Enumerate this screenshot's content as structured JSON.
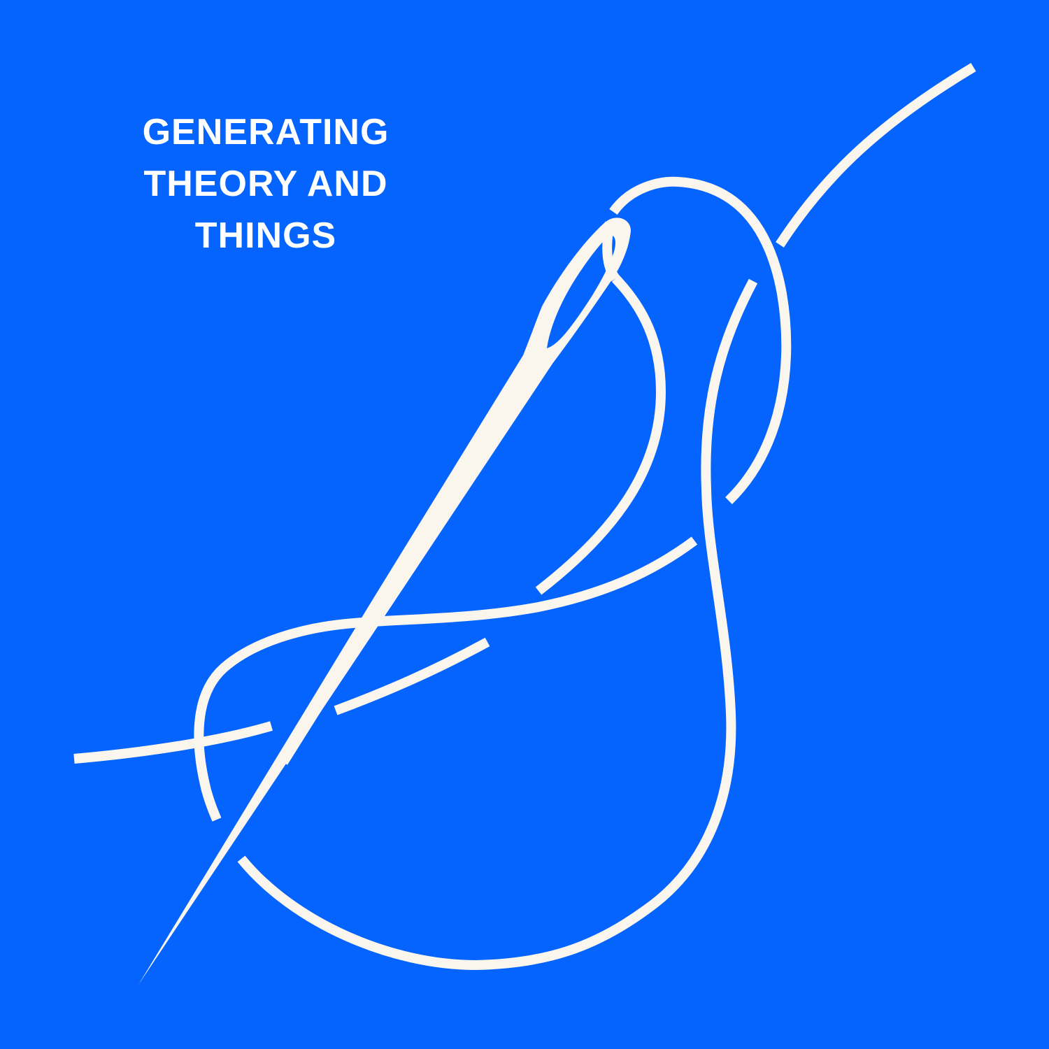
{
  "title": {
    "line1": "GENERATING",
    "line2": "THEORY AND",
    "line3": "THINGS"
  },
  "colors": {
    "background": "#0563FE",
    "line_art": "#FAF6EE",
    "text": "#FFFFFF"
  },
  "illustration": {
    "icon": "needle-and-thread-icon"
  }
}
